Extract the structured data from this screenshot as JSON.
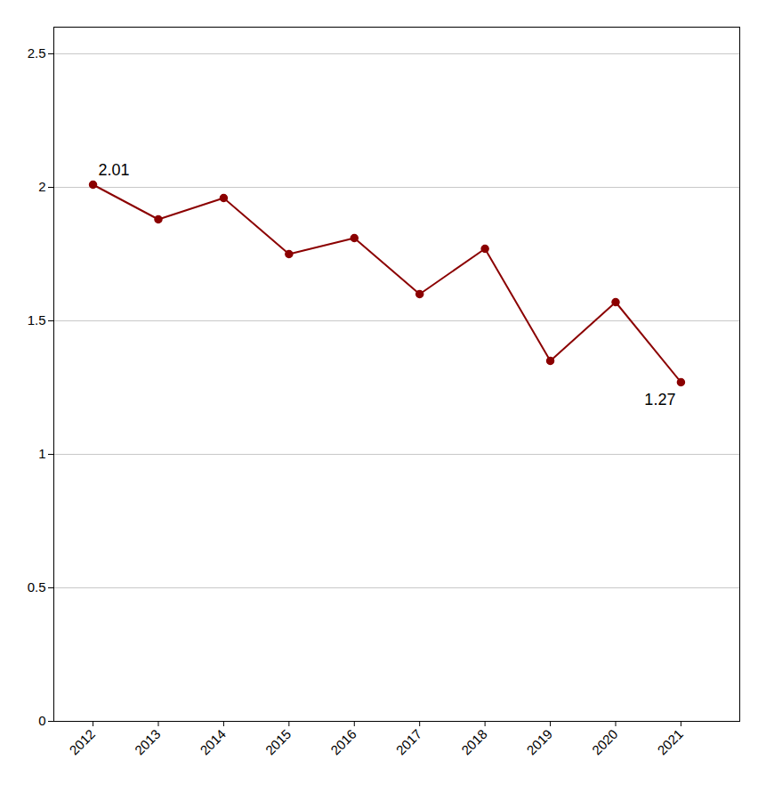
{
  "chart_data": {
    "type": "line",
    "x": [
      2012,
      2013,
      2014,
      2015,
      2016,
      2017,
      2018,
      2019,
      2020,
      2021
    ],
    "values": [
      2.01,
      1.88,
      1.96,
      1.75,
      1.81,
      1.6,
      1.77,
      1.35,
      1.57,
      1.27
    ],
    "color": "#8B0000",
    "marker": "circle",
    "xlim": [
      2011.4,
      2021.9
    ],
    "xticks": [
      2012,
      2013,
      2014,
      2015,
      2016,
      2017,
      2018,
      2019,
      2020,
      2021
    ],
    "ylim": [
      0,
      2.6
    ],
    "yticks": [
      0,
      0.5,
      1,
      1.5,
      2,
      2.5
    ],
    "grid": true,
    "annotations": [
      {
        "text": "2.01",
        "x": 2012,
        "y": 2.01
      },
      {
        "text": "1.27",
        "x": 2021,
        "y": 1.27
      }
    ]
  }
}
